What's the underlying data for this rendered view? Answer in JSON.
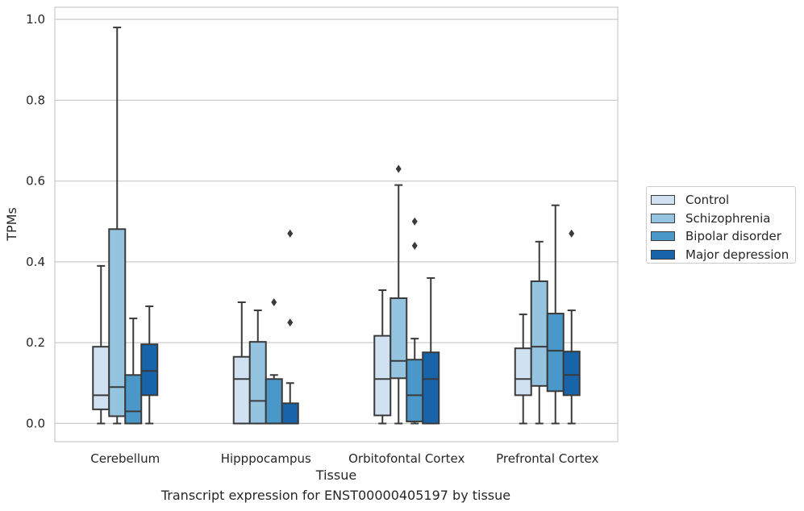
{
  "chart_data": {
    "type": "box",
    "title": "",
    "caption": "Transcript expression for ENST00000405197 by tissue",
    "xlabel": "Tissue",
    "ylabel": "TPMs",
    "ylim": [
      -0.045,
      1.03
    ],
    "yticks": [
      "0.0",
      "0.2",
      "0.4",
      "0.6",
      "0.8",
      "1.0"
    ],
    "ytick_values": [
      0,
      0.2,
      0.4,
      0.6,
      0.8,
      1.0
    ],
    "grid": true,
    "legend_position": "right",
    "categories": [
      "Cerebellum",
      "Hipppocampus",
      "Orbitofontal Cortex",
      "Prefrontal Cortex"
    ],
    "series": [
      {
        "name": "Control",
        "color": "#d0e1f2",
        "boxes": [
          {
            "whisker_low": 0.0,
            "q1": 0.035,
            "median": 0.07,
            "q3": 0.19,
            "whisker_high": 0.39,
            "outliers": []
          },
          {
            "whisker_low": 0.0,
            "q1": 0.0,
            "median": 0.11,
            "q3": 0.165,
            "whisker_high": 0.3,
            "outliers": []
          },
          {
            "whisker_low": 0.0,
            "q1": 0.02,
            "median": 0.11,
            "q3": 0.217,
            "whisker_high": 0.33,
            "outliers": []
          },
          {
            "whisker_low": 0.0,
            "q1": 0.07,
            "median": 0.11,
            "q3": 0.186,
            "whisker_high": 0.27,
            "outliers": []
          }
        ]
      },
      {
        "name": "Schizophrenia",
        "color": "#94c4df",
        "boxes": [
          {
            "whisker_low": 0.0,
            "q1": 0.018,
            "median": 0.09,
            "q3": 0.481,
            "whisker_high": 0.98,
            "outliers": []
          },
          {
            "whisker_low": 0.0,
            "q1": 0.0,
            "median": 0.056,
            "q3": 0.202,
            "whisker_high": 0.28,
            "outliers": []
          },
          {
            "whisker_low": 0.0,
            "q1": 0.112,
            "median": 0.155,
            "q3": 0.31,
            "whisker_high": 0.59,
            "outliers": [
              0.63
            ]
          },
          {
            "whisker_low": 0.0,
            "q1": 0.093,
            "median": 0.19,
            "q3": 0.352,
            "whisker_high": 0.45,
            "outliers": []
          }
        ]
      },
      {
        "name": "Bipolar disorder",
        "color": "#4a98c9",
        "boxes": [
          {
            "whisker_low": 0.0,
            "q1": 0.0,
            "median": 0.03,
            "q3": 0.12,
            "whisker_high": 0.26,
            "outliers": []
          },
          {
            "whisker_low": 0.0,
            "q1": 0.0,
            "median": 0.0,
            "q3": 0.11,
            "whisker_high": 0.12,
            "outliers": [
              0.3
            ]
          },
          {
            "whisker_low": 0.0,
            "q1": 0.005,
            "median": 0.07,
            "q3": 0.158,
            "whisker_high": 0.21,
            "outliers": [
              0.44,
              0.5
            ]
          },
          {
            "whisker_low": 0.0,
            "q1": 0.08,
            "median": 0.18,
            "q3": 0.272,
            "whisker_high": 0.54,
            "outliers": []
          }
        ]
      },
      {
        "name": "Major depression",
        "color": "#1764ab",
        "boxes": [
          {
            "whisker_low": 0.0,
            "q1": 0.07,
            "median": 0.13,
            "q3": 0.196,
            "whisker_high": 0.29,
            "outliers": []
          },
          {
            "whisker_low": 0.0,
            "q1": 0.0,
            "median": 0.0,
            "q3": 0.05,
            "whisker_high": 0.1,
            "outliers": [
              0.25,
              0.47
            ]
          },
          {
            "whisker_low": 0.0,
            "q1": 0.0,
            "median": 0.11,
            "q3": 0.176,
            "whisker_high": 0.36,
            "outliers": []
          },
          {
            "whisker_low": 0.0,
            "q1": 0.07,
            "median": 0.12,
            "q3": 0.178,
            "whisker_high": 0.28,
            "outliers": [
              0.47
            ]
          }
        ]
      }
    ]
  }
}
